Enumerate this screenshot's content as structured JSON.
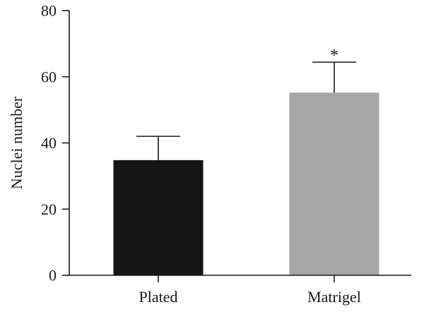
{
  "chart_data": {
    "type": "bar",
    "categories": [
      "Plated",
      "Matrigel"
    ],
    "values": [
      34.8,
      55.2
    ],
    "errors": [
      7.2,
      9.2
    ],
    "significance": [
      "",
      "*"
    ],
    "colors": {
      "Plated": "#161616",
      "Matrigel": "#a6a6a6"
    },
    "ylabel": "Nuclei number",
    "xlabel": "",
    "ylim": [
      0,
      80
    ],
    "yticks": [
      0,
      20,
      40,
      60,
      80
    ],
    "grid": false,
    "legend": "none"
  }
}
